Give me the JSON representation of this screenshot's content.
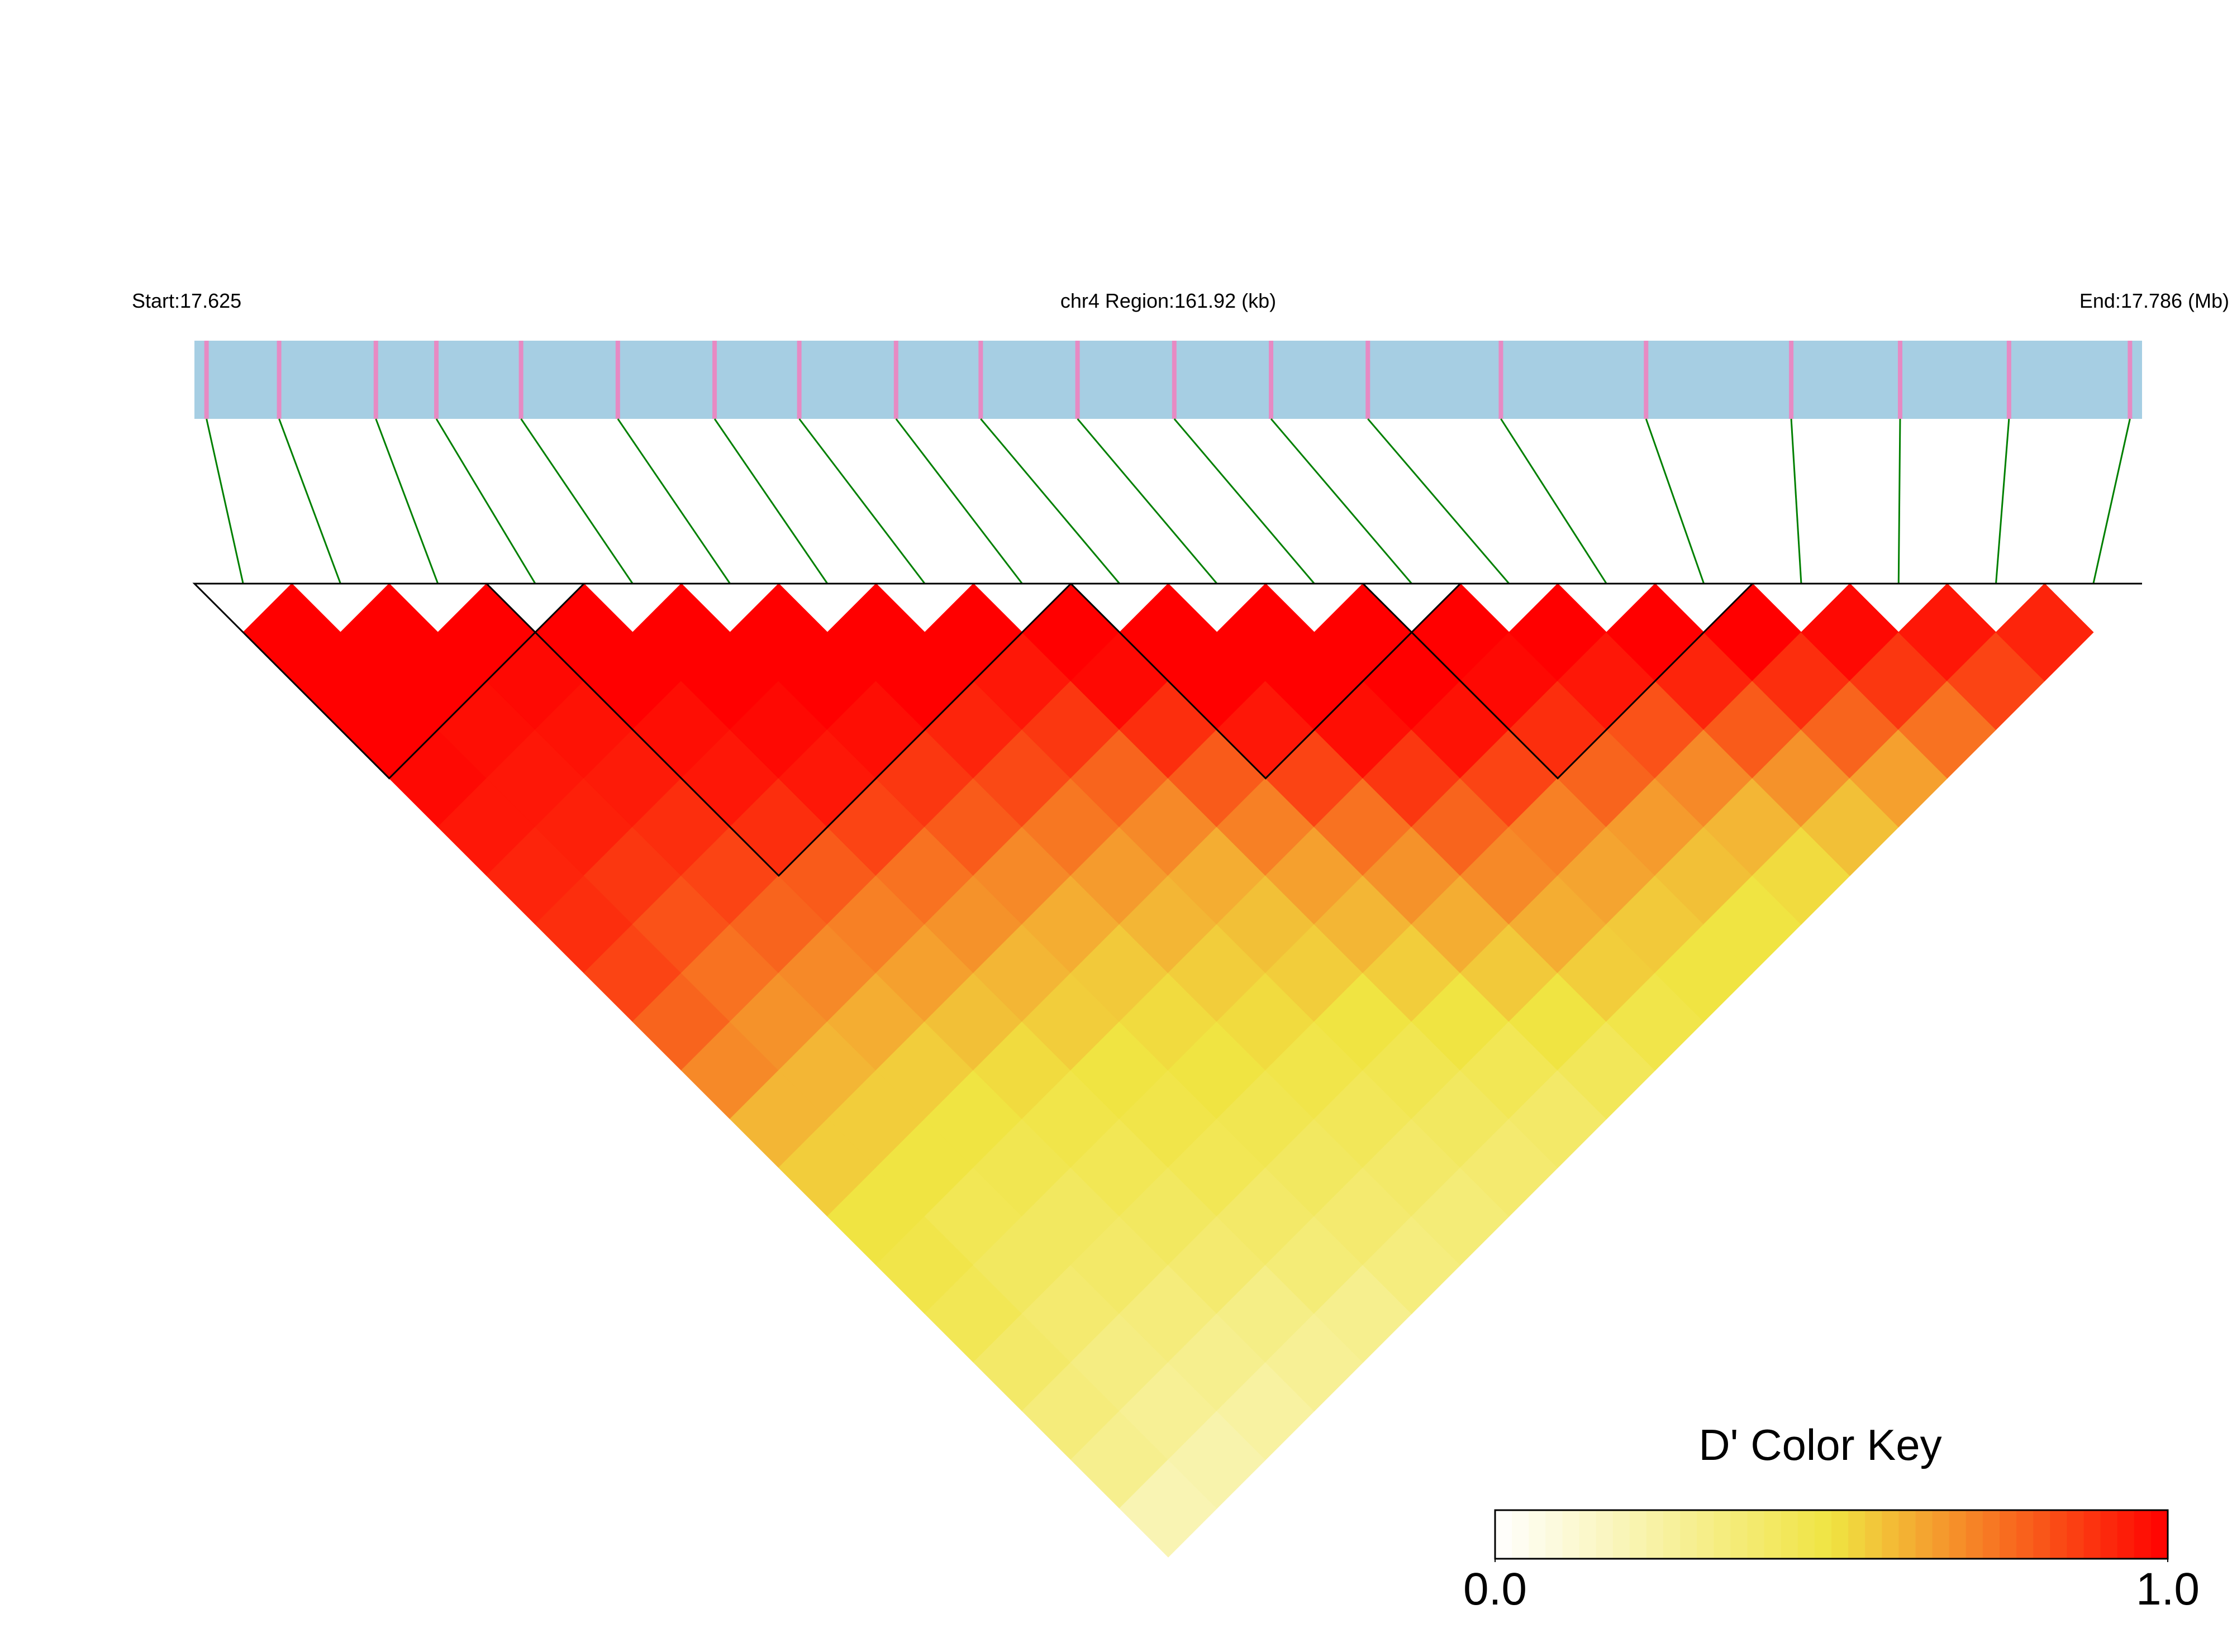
{
  "chart_data": {
    "type": "ld-heatmap",
    "start_label": "Start:17.625",
    "region_label": "chr4 Region:161.92 (kb)",
    "end_label": "End:17.786 (Mb)",
    "xlim": [
      17.625,
      17.786
    ],
    "positions": [
      17.626,
      17.632,
      17.64,
      17.645,
      17.652,
      17.66,
      17.668,
      17.675,
      17.683,
      17.69,
      17.698,
      17.706,
      17.714,
      17.722,
      17.733,
      17.745,
      17.757,
      17.766,
      17.775,
      17.785
    ],
    "dprime": [
      [
        1,
        1,
        1,
        0.98,
        0.95,
        0.92,
        0.9,
        0.85,
        0.78,
        0.7,
        0.6,
        0.55,
        0.5,
        0.48,
        0.45,
        0.4,
        0.35,
        0.3,
        0.2
      ],
      [
        1,
        1,
        0.97,
        0.95,
        0.93,
        0.88,
        0.82,
        0.75,
        0.68,
        0.6,
        0.55,
        0.5,
        0.45,
        0.42,
        0.38,
        0.33,
        0.28,
        0.22
      ],
      [
        1,
        0.98,
        0.96,
        0.94,
        0.9,
        0.85,
        0.78,
        0.7,
        0.62,
        0.55,
        0.5,
        0.46,
        0.42,
        0.4,
        0.35,
        0.3,
        0.25
      ],
      [
        1,
        1,
        0.97,
        0.95,
        0.9,
        0.8,
        0.72,
        0.65,
        0.58,
        0.52,
        0.48,
        0.45,
        0.42,
        0.38,
        0.32,
        0.28
      ],
      [
        1,
        1,
        0.98,
        0.95,
        0.85,
        0.75,
        0.68,
        0.6,
        0.55,
        0.5,
        0.48,
        0.45,
        0.4,
        0.36,
        0.3
      ],
      [
        1,
        1,
        0.97,
        0.88,
        0.8,
        0.7,
        0.62,
        0.56,
        0.52,
        0.5,
        0.46,
        0.42,
        0.38,
        0.34
      ],
      [
        1,
        1,
        0.92,
        0.84,
        0.74,
        0.66,
        0.6,
        0.55,
        0.52,
        0.48,
        0.44,
        0.4,
        0.36
      ],
      [
        1,
        0.95,
        0.88,
        0.78,
        0.7,
        0.62,
        0.58,
        0.55,
        0.5,
        0.46,
        0.42,
        0.38
      ],
      [
        1,
        0.98,
        0.9,
        0.8,
        0.72,
        0.65,
        0.6,
        0.55,
        0.5,
        0.45,
        0.4
      ],
      [
        1,
        1,
        0.95,
        0.85,
        0.75,
        0.68,
        0.62,
        0.56,
        0.5,
        0.44
      ],
      [
        1,
        1,
        0.97,
        0.88,
        0.78,
        0.7,
        0.62,
        0.55,
        0.48
      ],
      [
        1,
        1,
        0.96,
        0.85,
        0.72,
        0.64,
        0.56,
        0.5
      ],
      [
        1,
        0.98,
        0.9,
        0.78,
        0.66,
        0.58,
        0.5
      ],
      [
        1,
        0.95,
        0.82,
        0.7,
        0.6,
        0.52
      ],
      [
        1,
        0.92,
        0.8,
        0.68,
        0.58
      ],
      [
        1,
        0.9,
        0.78,
        0.65
      ],
      [
        0.98,
        0.88,
        0.75
      ],
      [
        0.95,
        0.85
      ],
      [
        0.92
      ]
    ],
    "blocks": [
      [
        0,
        3
      ],
      [
        3,
        8
      ],
      [
        9,
        12
      ],
      [
        12,
        15
      ]
    ],
    "colors": [
      "#ffffff",
      "#f0e442",
      "#ff0000"
    ],
    "colorbar_title": "D' Color Key",
    "clim": [
      0,
      1
    ],
    "cticks": [
      {
        "value": 0,
        "label": "0.0"
      },
      {
        "value": 1,
        "label": "1.0"
      }
    ]
  }
}
